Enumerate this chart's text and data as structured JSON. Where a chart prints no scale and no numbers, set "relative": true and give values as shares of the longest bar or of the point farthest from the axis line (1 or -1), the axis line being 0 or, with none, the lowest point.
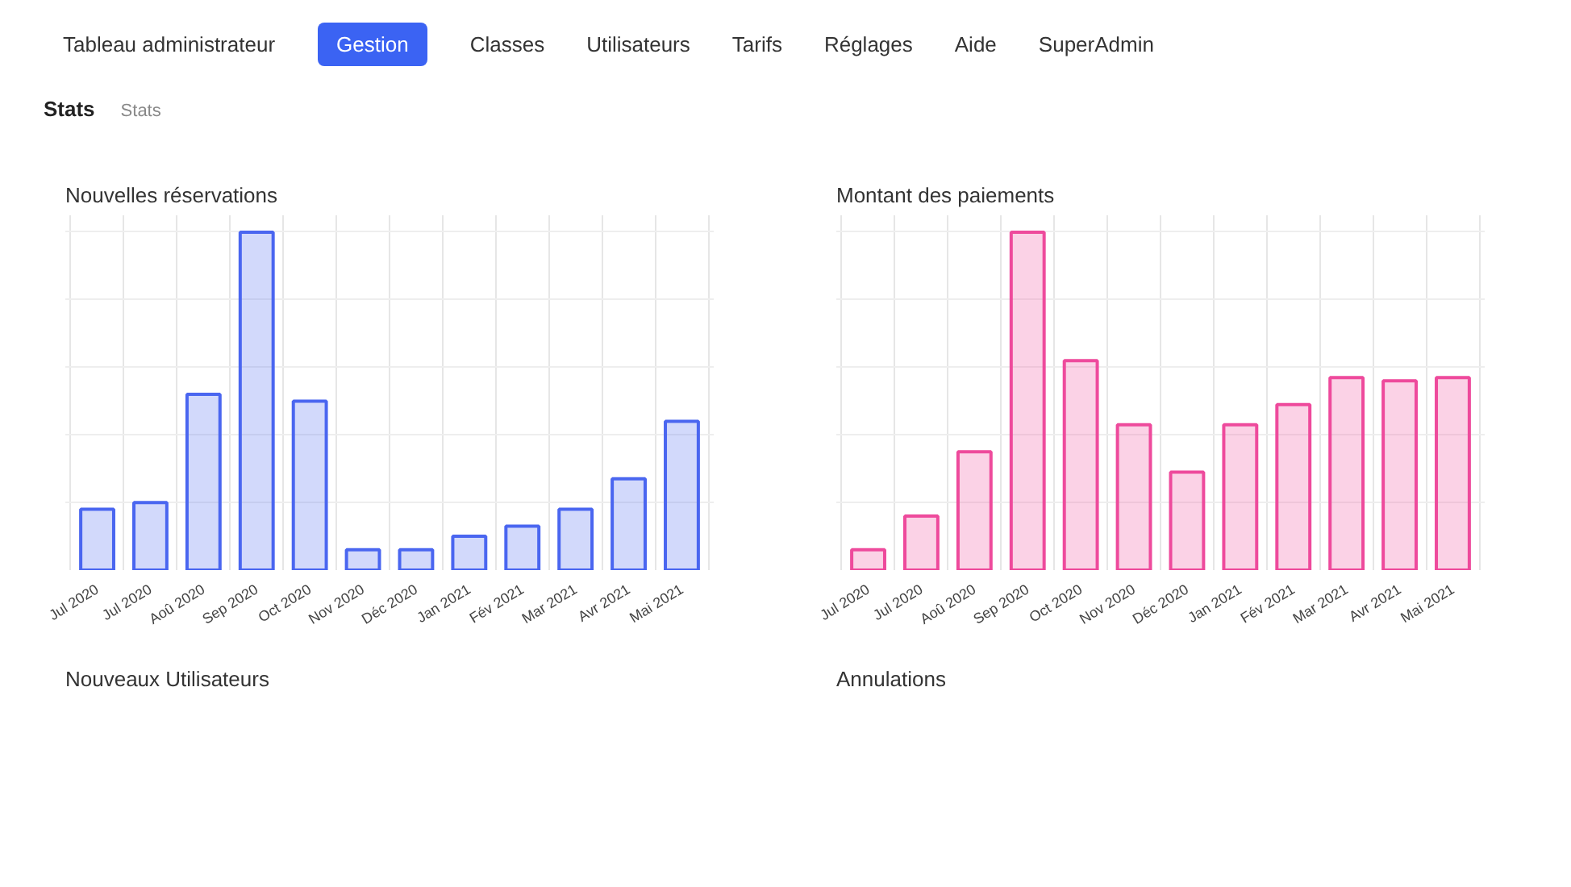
{
  "chart_data": [
    {
      "type": "other",
      "title": "Stats",
      "annotations": [
        "Tableau administrateur",
        "Gestion",
        "Classes",
        "Utilisateurs",
        "Tarifs",
        "Réglages",
        "Aide",
        "SuperAdmin",
        "Stats"
      ]
    },
    {
      "type": "bar",
      "title": "Nouvelles réservations",
      "relative": true,
      "grid": true,
      "color": "#4a66f0",
      "categories": [
        "Jul 2020",
        "Jul 2020",
        "Aoû 2020",
        "Sep 2020",
        "Oct 2020",
        "Nov 2020",
        "Déc 2020",
        "Jan 2021",
        "Fév 2021",
        "Mar 2021",
        "Avr 2021",
        "Mai 2021"
      ],
      "values": [
        0.18,
        0.2,
        0.52,
        1,
        0.5,
        0.06,
        0.06,
        0.1,
        0.13,
        0.18,
        0.27,
        0.44
      ]
    },
    {
      "type": "bar",
      "title": "Montant des paiements",
      "relative": true,
      "grid": true,
      "color": "#ee4a9c",
      "categories": [
        "Jul 2020",
        "Jul 2020",
        "Aoû 2020",
        "Sep 2020",
        "Oct 2020",
        "Nov 2020",
        "Déc 2020",
        "Jan 2021",
        "Fév 2021",
        "Mar 2021",
        "Avr 2021",
        "Mai 2021"
      ],
      "values": [
        0.06,
        0.16,
        0.35,
        1,
        0.62,
        0.43,
        0.29,
        0.43,
        0.49,
        0.57,
        0.56,
        0.57
      ]
    },
    {
      "type": "other",
      "title": "Nouveaux Utilisateurs"
    },
    {
      "type": "other",
      "title": "Annulations"
    }
  ]
}
